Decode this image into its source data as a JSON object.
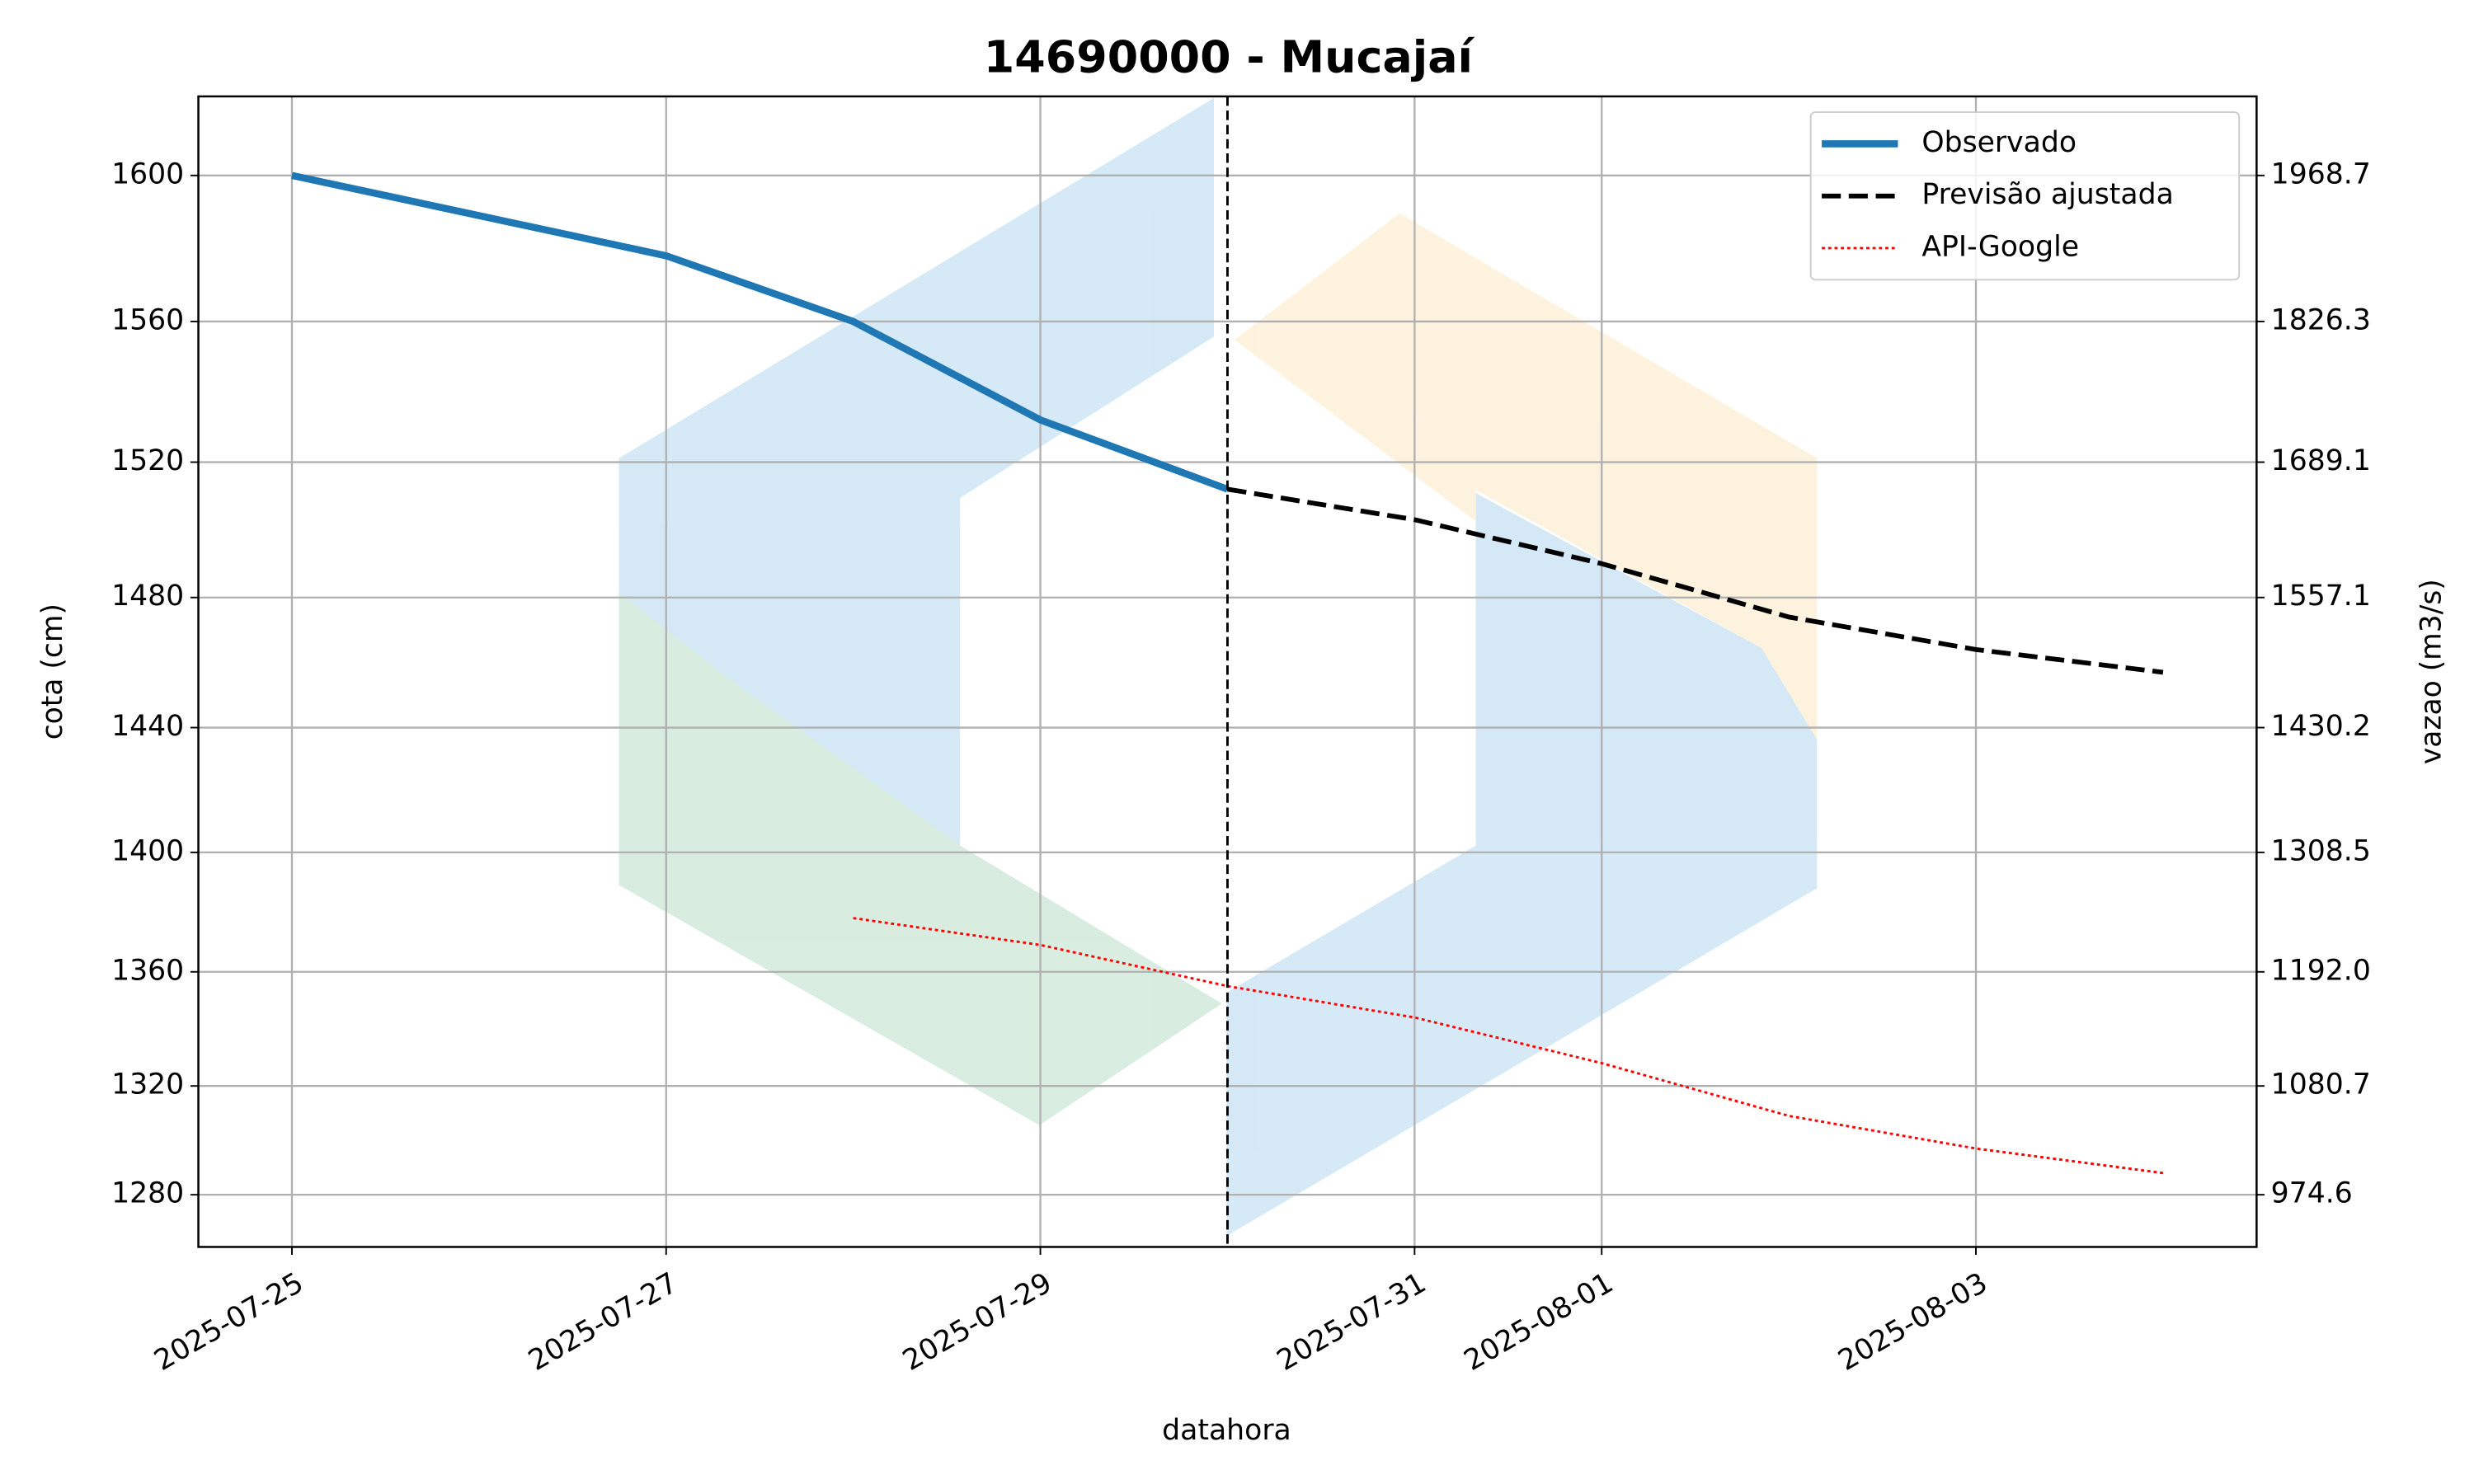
{
  "chart_data": {
    "type": "line",
    "title": "14690000 - Mucajaí",
    "xlabel": "datahora",
    "ylabel": "cota (cm)",
    "y2label": "vazao (m3/s)",
    "xlim": [
      "2025-07-24T12:00",
      "2025-08-04T12:00"
    ],
    "xticks": [
      "2025-07-25",
      "2025-07-27",
      "2025-07-29",
      "2025-07-31",
      "2025-08-01",
      "2025-08-03"
    ],
    "ylim": [
      1261,
      1622
    ],
    "yticks": [
      1280,
      1320,
      1360,
      1400,
      1440,
      1480,
      1520,
      1560,
      1600
    ],
    "y2lim": [
      923.7,
      2045.8
    ],
    "y2ticks": [
      974.6,
      1080.7,
      {
        "value": 1192,
        "label": "1192.0"
      },
      1308.5,
      1430.2,
      1557.1,
      1689.1,
      1826.3,
      1968.7
    ],
    "grid": true,
    "legend": "upper right",
    "vline": "2025-07-30",
    "series": [
      {
        "name": "Observado",
        "color": "#1f77b4",
        "linestyle": "solid",
        "linewidth": 4.5,
        "x": [
          "2025-07-25",
          "2025-07-27",
          "2025-07-28",
          "2025-07-29",
          "2025-07-30"
        ],
        "values": [
          1600,
          1578,
          1560,
          1532,
          1512
        ]
      },
      {
        "name": "Previsão ajustada",
        "color": "#000000",
        "linestyle": "dashed",
        "linewidth": 3,
        "x": [
          "2025-07-30",
          "2025-07-31",
          "2025-08-01",
          "2025-08-02",
          "2025-08-03",
          "2025-08-04"
        ],
        "values": [
          1512,
          1503,
          1490,
          1474,
          1464,
          1457
        ]
      },
      {
        "name": "API-Google",
        "color": "#ff0000",
        "linestyle": "dotted",
        "linewidth": 1.5,
        "x": [
          "2025-07-28",
          "2025-07-29",
          "2025-07-30",
          "2025-07-31",
          "2025-08-01",
          "2025-08-02",
          "2025-08-03",
          "2025-08-04"
        ],
        "values": [
          1378,
          1369,
          1355,
          1344,
          1328,
          1309,
          1297,
          1288
        ]
      }
    ]
  }
}
